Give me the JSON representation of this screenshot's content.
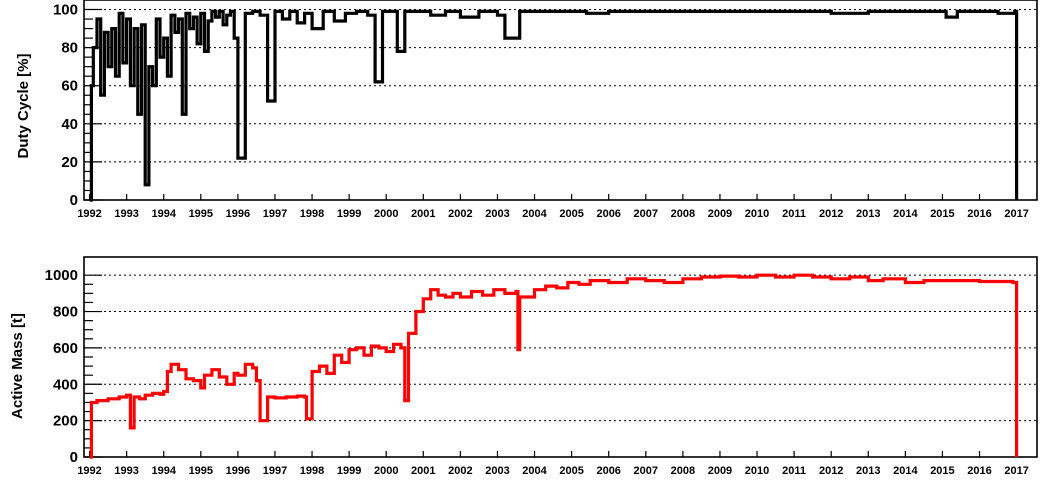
{
  "chart_data": [
    {
      "type": "line",
      "ylabel": "Duty Cycle [%]",
      "xlabel": "",
      "x_tick_labels": [
        "1992",
        "1993",
        "1994",
        "1995",
        "1996",
        "1997",
        "1998",
        "1999",
        "2000",
        "2001",
        "2002",
        "2003",
        "2004",
        "2005",
        "2006",
        "2007",
        "2008",
        "2009",
        "2010",
        "2011",
        "2012",
        "2013",
        "2014",
        "2015",
        "2016",
        "2017"
      ],
      "xlim": [
        1991.85,
        2017.55
      ],
      "ylim": [
        0,
        105
      ],
      "y_ticks": [
        0,
        20,
        40,
        60,
        80,
        100
      ],
      "grid": true,
      "series": [
        {
          "color": "#000000",
          "x": [
            1992.0,
            1992.05,
            1992.1,
            1992.2,
            1992.3,
            1992.4,
            1992.5,
            1992.6,
            1992.7,
            1992.8,
            1992.9,
            1993.0,
            1993.1,
            1993.2,
            1993.3,
            1993.4,
            1993.5,
            1993.6,
            1993.7,
            1993.8,
            1993.9,
            1994.0,
            1994.1,
            1994.2,
            1994.3,
            1994.4,
            1994.5,
            1994.6,
            1994.7,
            1994.8,
            1994.9,
            1995.0,
            1995.1,
            1995.2,
            1995.3,
            1995.4,
            1995.5,
            1995.6,
            1995.7,
            1995.8,
            1995.9,
            1996.0,
            1996.2,
            1996.4,
            1996.6,
            1996.8,
            1997.0,
            1997.2,
            1997.4,
            1997.6,
            1997.8,
            1998.0,
            1998.3,
            1998.6,
            1998.9,
            1999.2,
            1999.5,
            1999.7,
            1999.9,
            2000.1,
            2000.3,
            2000.5,
            2000.8,
            2001.2,
            2001.6,
            2002.0,
            2002.5,
            2003.0,
            2003.2,
            2003.6,
            2004.0,
            2005.0,
            2005.4,
            2006.0,
            2007.0,
            2008.0,
            2009.0,
            2010.0,
            2011.0,
            2012.0,
            2013.0,
            2014.0,
            2015.0,
            2015.1,
            2015.4,
            2016.0,
            2016.5,
            2016.95,
            2017.0
          ],
          "values": [
            0,
            60,
            80,
            95,
            55,
            88,
            70,
            90,
            65,
            98,
            72,
            95,
            60,
            90,
            45,
            92,
            8,
            70,
            60,
            95,
            75,
            85,
            65,
            97,
            88,
            95,
            45,
            98,
            90,
            96,
            82,
            98,
            78,
            94,
            99,
            96,
            99,
            92,
            97,
            99,
            85,
            22,
            98,
            99,
            97,
            52,
            99,
            95,
            99,
            93,
            98,
            90,
            99,
            94,
            98,
            99,
            97,
            62,
            99,
            99,
            78,
            99,
            99,
            97,
            99,
            96,
            99,
            97,
            85,
            99,
            99,
            99,
            98,
            99,
            99,
            99,
            99,
            99,
            99,
            98,
            99,
            99,
            99,
            96,
            99,
            99,
            98,
            99,
            0
          ]
        }
      ]
    },
    {
      "type": "line",
      "ylabel": "Active Mass [t]",
      "xlabel": "",
      "x_tick_labels": [
        "1992",
        "1993",
        "1994",
        "1995",
        "1996",
        "1997",
        "1998",
        "1999",
        "2000",
        "2001",
        "2002",
        "2003",
        "2004",
        "2005",
        "2006",
        "2007",
        "2008",
        "2009",
        "2010",
        "2011",
        "2012",
        "2013",
        "2014",
        "2015",
        "2016",
        "2017"
      ],
      "xlim": [
        1991.85,
        2017.55
      ],
      "ylim": [
        0,
        1100
      ],
      "y_ticks": [
        0,
        200,
        400,
        600,
        800,
        1000
      ],
      "grid": true,
      "series": [
        {
          "color": "#ff0000",
          "x": [
            1992.0,
            1992.05,
            1992.2,
            1992.5,
            1992.8,
            1993.0,
            1993.1,
            1993.2,
            1993.35,
            1993.5,
            1993.7,
            1993.9,
            1994.0,
            1994.1,
            1994.2,
            1994.4,
            1994.6,
            1994.8,
            1995.0,
            1995.1,
            1995.3,
            1995.5,
            1995.7,
            1995.9,
            1996.0,
            1996.2,
            1996.4,
            1996.5,
            1996.6,
            1996.8,
            1997.0,
            1997.3,
            1997.6,
            1997.8,
            1997.85,
            1998.0,
            1998.2,
            1998.4,
            1998.6,
            1998.8,
            1999.0,
            1999.2,
            1999.4,
            1999.6,
            1999.8,
            2000.0,
            2000.2,
            2000.4,
            2000.5,
            2000.6,
            2000.8,
            2001.0,
            2001.2,
            2001.4,
            2001.6,
            2001.8,
            2002.0,
            2002.3,
            2002.6,
            2002.9,
            2003.2,
            2003.5,
            2003.55,
            2003.6,
            2004.0,
            2004.3,
            2004.6,
            2004.9,
            2005.2,
            2005.5,
            2005.8,
            2006.0,
            2006.5,
            2007.0,
            2007.5,
            2008.0,
            2008.5,
            2009.0,
            2009.5,
            2010.0,
            2010.5,
            2011.0,
            2011.5,
            2012.0,
            2012.5,
            2013.0,
            2013.4,
            2013.7,
            2014.0,
            2014.5,
            2015.0,
            2015.5,
            2016.0,
            2016.5,
            2016.9,
            2016.95,
            2017.0
          ],
          "values": [
            0,
            300,
            310,
            320,
            330,
            340,
            160,
            330,
            320,
            340,
            350,
            345,
            360,
            470,
            510,
            480,
            430,
            420,
            380,
            450,
            480,
            440,
            400,
            460,
            450,
            510,
            490,
            420,
            200,
            330,
            325,
            330,
            335,
            330,
            210,
            470,
            500,
            460,
            560,
            520,
            590,
            600,
            560,
            610,
            600,
            580,
            620,
            600,
            310,
            680,
            800,
            870,
            920,
            890,
            880,
            900,
            880,
            910,
            890,
            920,
            900,
            910,
            590,
            880,
            920,
            940,
            930,
            960,
            950,
            970,
            970,
            960,
            980,
            970,
            960,
            980,
            990,
            995,
            990,
            1000,
            990,
            1000,
            990,
            980,
            990,
            970,
            980,
            980,
            960,
            970,
            970,
            970,
            965,
            965,
            960,
            960,
            0
          ]
        }
      ]
    }
  ]
}
